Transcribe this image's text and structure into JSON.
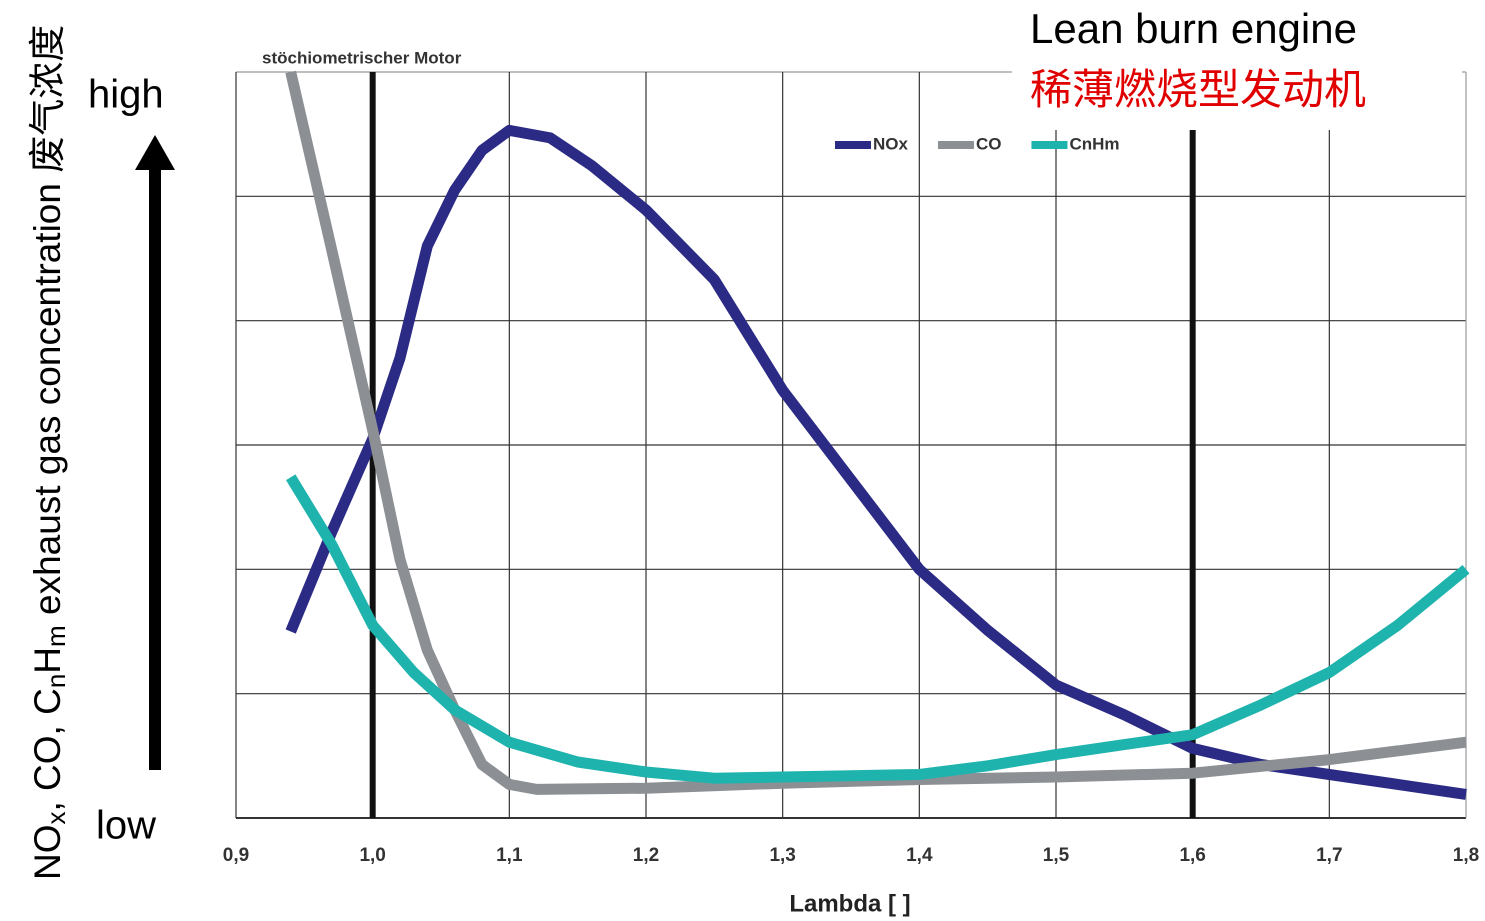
{
  "chart_data": {
    "type": "line",
    "x_label": "Lambda [ ]",
    "y_label": [
      "NO",
      "x",
      ", CO, C",
      "n",
      "H",
      "m",
      " exhaust gas concentration 废气浓度"
    ],
    "arrow_labels": {
      "high": "high",
      "low": "low"
    },
    "xlim": [
      0.9,
      1.8
    ],
    "xticks": [
      {
        "value": 0.9,
        "label": "0,9"
      },
      {
        "value": 1.0,
        "label": "1,0"
      },
      {
        "value": 1.1,
        "label": "1,1"
      },
      {
        "value": 1.2,
        "label": "1,2"
      },
      {
        "value": 1.3,
        "label": "1,3"
      },
      {
        "value": 1.4,
        "label": "1,4"
      },
      {
        "value": 1.5,
        "label": "1,5"
      },
      {
        "value": 1.6,
        "label": "1,6"
      },
      {
        "value": 1.7,
        "label": "1,7"
      },
      {
        "value": 1.8,
        "label": "1,8"
      }
    ],
    "ylim": [
      0,
      6
    ],
    "yticks": [
      0,
      1,
      2,
      3,
      4,
      5,
      6
    ],
    "grid": true,
    "legend": "top",
    "annotations": [
      {
        "x": 1.0,
        "label": "stöchiometrischer Motor"
      },
      {
        "x": 1.6,
        "label": "Lean burn engine",
        "label_cn": "稀薄燃烧型发动机"
      }
    ],
    "series": [
      {
        "name": "NOx",
        "color": "#2b2a84",
        "x": [
          0.94,
          0.97,
          1.0,
          1.02,
          1.04,
          1.06,
          1.08,
          1.1,
          1.13,
          1.16,
          1.2,
          1.25,
          1.3,
          1.35,
          1.4,
          1.45,
          1.5,
          1.55,
          1.6,
          1.65,
          1.7,
          1.75,
          1.8
        ],
        "values": [
          1.5,
          2.3,
          3.05,
          3.7,
          4.6,
          5.05,
          5.37,
          5.53,
          5.47,
          5.25,
          4.89,
          4.33,
          3.44,
          2.72,
          2.0,
          1.51,
          1.07,
          0.83,
          0.56,
          0.43,
          0.35,
          0.27,
          0.19
        ]
      },
      {
        "name": "CO",
        "color": "#8c8f93",
        "x": [
          0.94,
          0.97,
          1.0,
          1.02,
          1.04,
          1.06,
          1.08,
          1.1,
          1.12,
          1.2,
          1.3,
          1.4,
          1.5,
          1.6,
          1.7,
          1.8
        ],
        "values": [
          6.0,
          4.57,
          3.12,
          2.08,
          1.35,
          0.87,
          0.43,
          0.27,
          0.23,
          0.24,
          0.28,
          0.31,
          0.33,
          0.36,
          0.47,
          0.61
        ]
      },
      {
        "name": "CnHm",
        "color": "#1fb3ad",
        "x": [
          0.94,
          0.97,
          1.0,
          1.03,
          1.06,
          1.1,
          1.15,
          1.2,
          1.25,
          1.3,
          1.35,
          1.4,
          1.45,
          1.5,
          1.55,
          1.6,
          1.65,
          1.7,
          1.75,
          1.8
        ],
        "values": [
          2.74,
          2.2,
          1.55,
          1.17,
          0.87,
          0.61,
          0.45,
          0.37,
          0.32,
          0.33,
          0.34,
          0.35,
          0.42,
          0.51,
          0.59,
          0.67,
          0.91,
          1.17,
          1.55,
          2.0
        ]
      }
    ]
  }
}
